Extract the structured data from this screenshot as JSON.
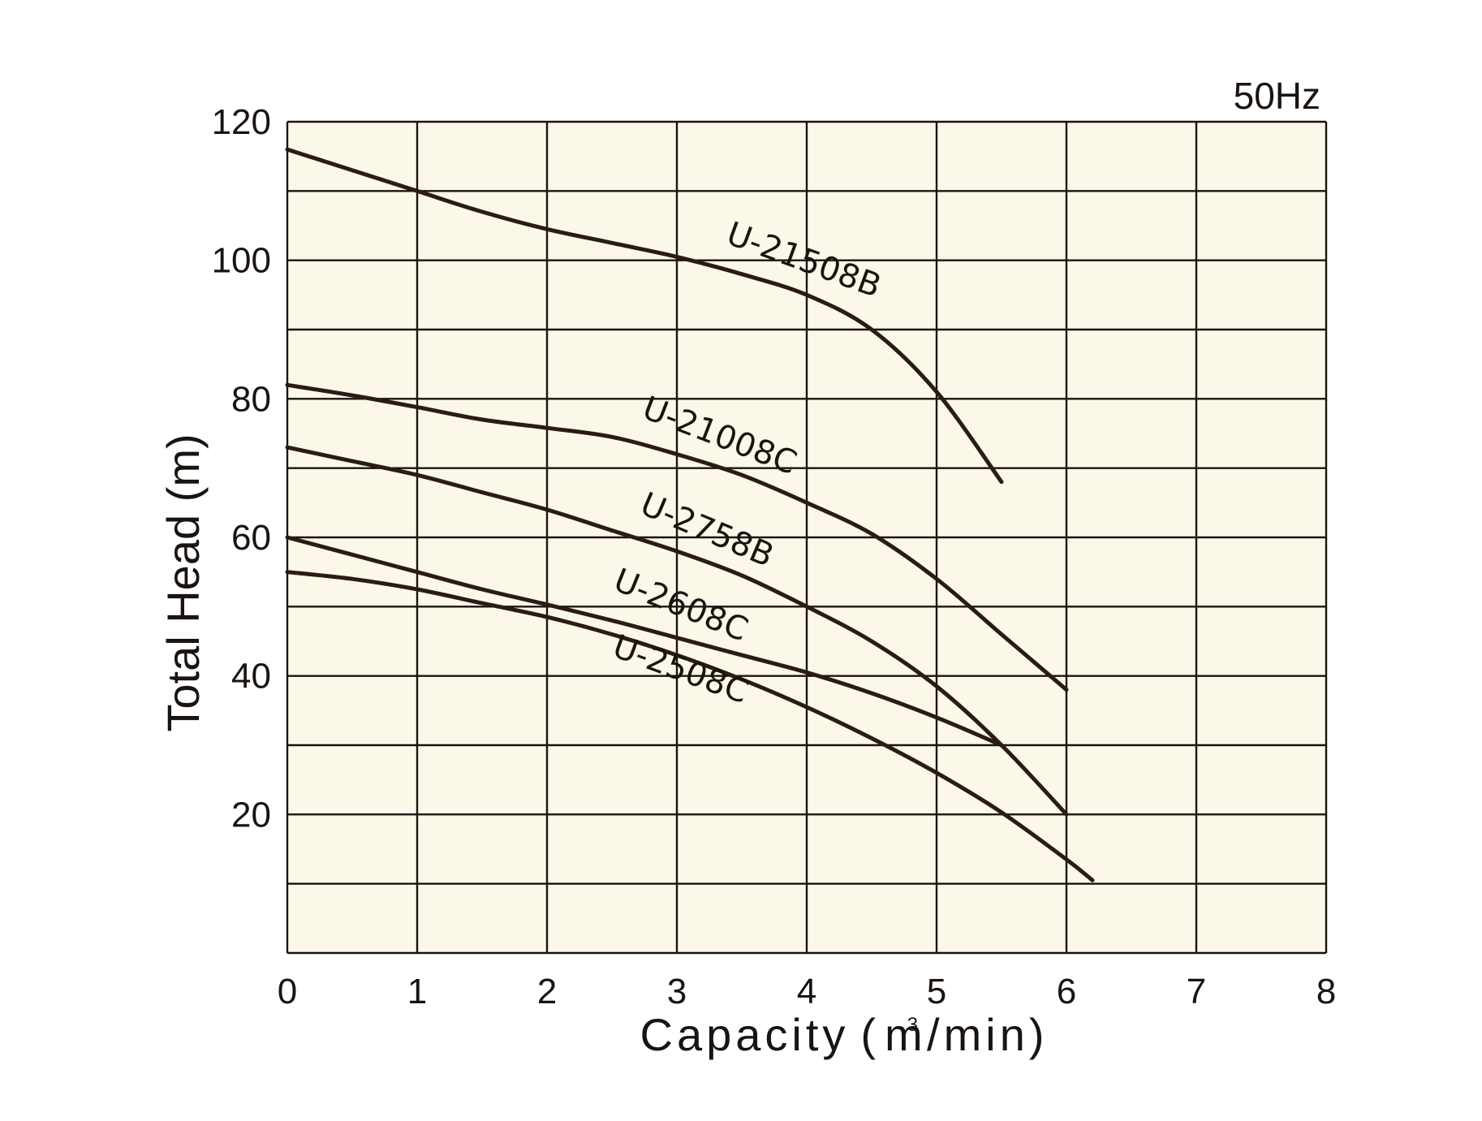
{
  "chart_data": {
    "type": "line",
    "frequency_label": "50Hz",
    "xlabel": "Capacity",
    "xlabel_unit_open": "(",
    "xlabel_unit_base": "m",
    "xlabel_unit_sup": "3",
    "xlabel_unit_rest": "/min",
    "xlabel_unit_close": ")",
    "ylabel": "Total Head (m)",
    "xlim": [
      0,
      8
    ],
    "ylim": [
      0,
      120
    ],
    "xticks": [
      0,
      1,
      2,
      3,
      4,
      5,
      6,
      7,
      8
    ],
    "yticks": [
      20,
      40,
      60,
      80,
      100,
      120
    ],
    "grid": true,
    "background_color": "#fbf7e9",
    "line_color": "#2a1c14",
    "series": [
      {
        "name": "U-21508B",
        "x": [
          0,
          0.5,
          1,
          1.5,
          2,
          2.5,
          3,
          3.5,
          4,
          4.5,
          5,
          5.5
        ],
        "y": [
          116,
          113,
          110,
          107,
          104.5,
          102.5,
          100.5,
          98,
          95,
          90,
          81,
          68
        ]
      },
      {
        "name": "U-21008C",
        "x": [
          0,
          0.5,
          1,
          1.5,
          2,
          2.5,
          3,
          3.5,
          4,
          4.5,
          5,
          5.5,
          6
        ],
        "y": [
          82,
          80.5,
          78.8,
          77,
          75.8,
          74.5,
          72,
          69,
          65,
          60.5,
          54,
          46,
          38
        ]
      },
      {
        "name": "U-2758B",
        "x": [
          0,
          0.5,
          1,
          1.5,
          2,
          2.5,
          3,
          3.5,
          4,
          4.5,
          5,
          5.5,
          6
        ],
        "y": [
          73,
          71,
          69,
          66.5,
          64,
          61,
          58,
          54.5,
          50,
          45,
          38.5,
          30,
          20
        ]
      },
      {
        "name": "U-2608C",
        "x": [
          0,
          0.5,
          1,
          1.5,
          2,
          2.5,
          3,
          3.5,
          4,
          4.5,
          5,
          5.5
        ],
        "y": [
          60,
          57.5,
          55,
          52.5,
          50.3,
          48,
          45.5,
          43,
          40.5,
          37.5,
          34,
          30
        ]
      },
      {
        "name": "U-2508C",
        "x": [
          0,
          0.5,
          1,
          1.5,
          2,
          2.5,
          3,
          3.5,
          4,
          4.5,
          5,
          5.5,
          6,
          6.2
        ],
        "y": [
          55,
          54,
          52.5,
          50.5,
          48.5,
          46,
          43,
          39.5,
          35.5,
          31,
          26,
          20.3,
          13.5,
          10.5
        ]
      }
    ]
  }
}
